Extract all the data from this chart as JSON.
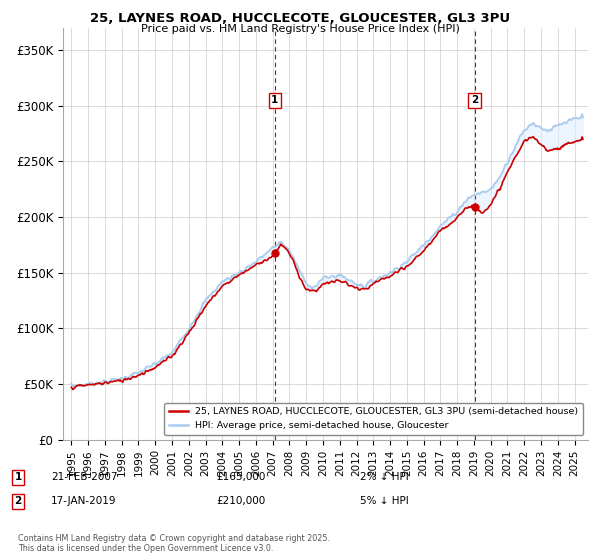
{
  "title": "25, LAYNES ROAD, HUCCLECOTE, GLOUCESTER, GL3 3PU",
  "subtitle": "Price paid vs. HM Land Registry's House Price Index (HPI)",
  "ylim": [
    0,
    370000
  ],
  "yticks": [
    0,
    50000,
    100000,
    150000,
    200000,
    250000,
    300000,
    350000
  ],
  "ytick_labels": [
    "£0",
    "£50K",
    "£100K",
    "£150K",
    "£200K",
    "£250K",
    "£300K",
    "£350K"
  ],
  "xlim_start": 1994.5,
  "xlim_end": 2025.8,
  "sale1_year": 2007.13,
  "sale1_price": 165000,
  "sale1_label": "21-FEB-2007",
  "sale1_pct": "2% ↓ HPI",
  "sale2_year": 2019.04,
  "sale2_price": 210000,
  "sale2_label": "17-JAN-2019",
  "sale2_pct": "5% ↓ HPI",
  "line_color_red": "#cc0000",
  "line_color_blue": "#aaccee",
  "fill_color_blue": "#ddeeff",
  "legend_entry1": "25, LAYNES ROAD, HUCCLECOTE, GLOUCESTER, GL3 3PU (semi-detached house)",
  "legend_entry2": "HPI: Average price, semi-detached house, Gloucester",
  "footer": "Contains HM Land Registry data © Crown copyright and database right 2025.\nThis data is licensed under the Open Government Licence v3.0.",
  "background_color": "#ffffff",
  "grid_color": "#cccccc"
}
